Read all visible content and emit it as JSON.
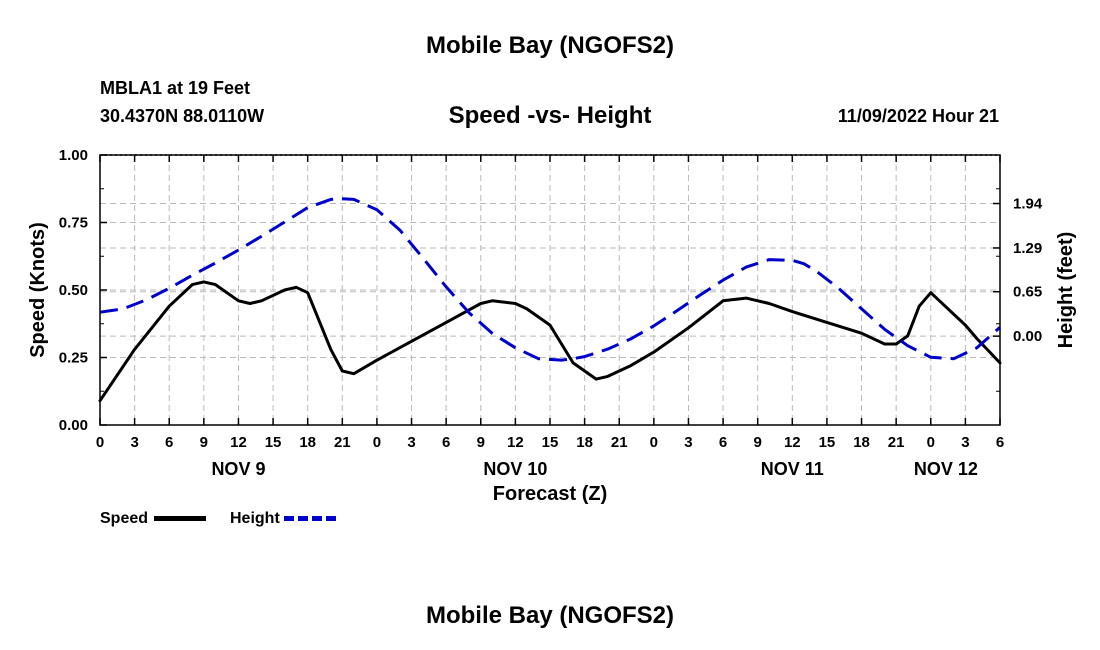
{
  "page": {
    "main_title": "Mobile Bay (NGOFS2)",
    "station_line": "MBLA1 at 19 Feet",
    "coords_line": "30.4370N  88.0110W",
    "chart_heading": "Speed -vs- Height",
    "forecast_time": "11/09/2022 Hour 21",
    "footer_title": "Mobile Bay (NGOFS2)"
  },
  "colors": {
    "speed": "#000000",
    "height": "#0000cc",
    "grid": "#bbbbbb"
  },
  "legend": {
    "speed_label": "Speed",
    "height_label": "Height"
  },
  "chart_data": {
    "type": "line",
    "title": "Speed -vs- Height",
    "xlabel": "Forecast (Z)",
    "ylabel": "Speed (Knots)",
    "y2label": "Height (feet)",
    "x_unit": "hours since NOV 9 00Z",
    "xlim": [
      0,
      78
    ],
    "ylim": [
      0,
      1
    ],
    "y2lim": [
      -1.3,
      2.65
    ],
    "x_ticks": [
      0,
      3,
      6,
      9,
      12,
      15,
      18,
      21,
      24,
      27,
      30,
      33,
      36,
      39,
      42,
      45,
      48,
      51,
      54,
      57,
      60,
      63,
      66,
      69,
      72,
      75,
      78
    ],
    "x_tick_labels": [
      "0",
      "3",
      "6",
      "9",
      "12",
      "15",
      "18",
      "21",
      "0",
      "3",
      "6",
      "9",
      "12",
      "15",
      "18",
      "21",
      "0",
      "3",
      "6",
      "9",
      "12",
      "15",
      "18",
      "21",
      "0",
      "3",
      "6"
    ],
    "date_labels": [
      {
        "x": 12,
        "label": "NOV 9"
      },
      {
        "x": 36,
        "label": "NOV 10"
      },
      {
        "x": 60,
        "label": "NOV 11"
      },
      {
        "x": 74,
        "label": "NOV 12"
      }
    ],
    "y_ticks": [
      0,
      0.25,
      0.5,
      0.75,
      1
    ],
    "y_tick_labels": [
      "0.00",
      "0.25",
      "0.50",
      "0.75",
      "1.00"
    ],
    "y2_ticks": [
      0,
      0.65,
      1.29,
      1.94
    ],
    "y2_tick_labels": [
      "0.00",
      "0.65",
      "1.29",
      "1.94"
    ],
    "series": [
      {
        "name": "Speed",
        "axis": "left",
        "style": "solid",
        "x": [
          0,
          3,
          6,
          8,
          9,
          10,
          12,
          13,
          14,
          16,
          17,
          18,
          20,
          21,
          22,
          24,
          27,
          30,
          33,
          34,
          36,
          37,
          39,
          41,
          43,
          44,
          45,
          46,
          48,
          51,
          54,
          56,
          57,
          58,
          60,
          63,
          66,
          68,
          69,
          70,
          71,
          72,
          74,
          75,
          76,
          78
        ],
        "y": [
          0.09,
          0.28,
          0.44,
          0.52,
          0.53,
          0.52,
          0.46,
          0.45,
          0.46,
          0.5,
          0.51,
          0.49,
          0.28,
          0.2,
          0.19,
          0.24,
          0.31,
          0.38,
          0.45,
          0.46,
          0.45,
          0.43,
          0.37,
          0.23,
          0.17,
          0.18,
          0.2,
          0.22,
          0.27,
          0.36,
          0.46,
          0.47,
          0.46,
          0.45,
          0.42,
          0.38,
          0.34,
          0.3,
          0.3,
          0.33,
          0.44,
          0.49,
          0.41,
          0.37,
          0.32,
          0.23
        ]
      },
      {
        "name": "Height",
        "axis": "right",
        "style": "dashed",
        "x": [
          0,
          2,
          4,
          6,
          8,
          10,
          12,
          14,
          16,
          18,
          20,
          21,
          22,
          24,
          26,
          28,
          30,
          32,
          34,
          36,
          38,
          40,
          41,
          42,
          44,
          46,
          48,
          50,
          52,
          54,
          56,
          58,
          60,
          61,
          62,
          64,
          66,
          68,
          70,
          72,
          74,
          76,
          78
        ],
        "y": [
          0.35,
          0.4,
          0.53,
          0.7,
          0.89,
          1.07,
          1.26,
          1.46,
          1.67,
          1.88,
          2.0,
          2.01,
          2.0,
          1.85,
          1.55,
          1.14,
          0.72,
          0.34,
          0.04,
          -0.17,
          -0.33,
          -0.35,
          -0.33,
          -0.3,
          -0.19,
          -0.04,
          0.15,
          0.37,
          0.6,
          0.82,
          1.01,
          1.12,
          1.11,
          1.06,
          0.96,
          0.7,
          0.4,
          0.1,
          -0.14,
          -0.31,
          -0.33,
          -0.17,
          0.13
        ]
      }
    ],
    "legend_position": "bottom-left",
    "grid": true
  }
}
